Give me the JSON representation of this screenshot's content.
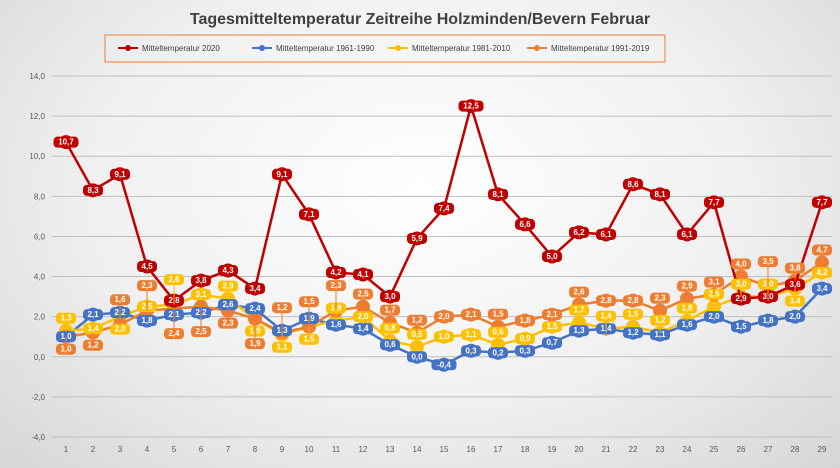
{
  "chart_data": {
    "type": "line",
    "title": "Tagesmitteltemperatur Zeitreihe Holzminden/Bevern Februar",
    "xlabel": "",
    "ylabel": "",
    "x": [
      1,
      2,
      3,
      4,
      5,
      6,
      7,
      8,
      9,
      10,
      11,
      12,
      13,
      14,
      15,
      16,
      17,
      18,
      19,
      20,
      21,
      22,
      23,
      24,
      25,
      26,
      27,
      28,
      29
    ],
    "ylim": [
      -4,
      14
    ],
    "yticks": [
      "-4,0",
      "-2,0",
      "0,0",
      "2,0",
      "4,0",
      "6,0",
      "8,0",
      "10,0",
      "12,0",
      "14,0"
    ],
    "grid": true,
    "legend_position": "top",
    "series": [
      {
        "name": "Mitteltemperatur 2020",
        "color": "#c00000",
        "values": [
          10.7,
          8.3,
          9.1,
          4.5,
          2.8,
          3.8,
          4.3,
          3.4,
          9.1,
          7.1,
          4.2,
          4.1,
          3.0,
          5.9,
          7.4,
          12.5,
          8.1,
          6.6,
          5.0,
          6.2,
          6.1,
          8.6,
          8.1,
          6.1,
          7.7,
          2.9,
          3.0,
          3.6,
          7.7
        ]
      },
      {
        "name": "Mitteltemperatur 1961-1990",
        "color": "#4472c4",
        "values": [
          1.0,
          2.1,
          2.2,
          1.8,
          2.1,
          2.2,
          2.6,
          2.4,
          1.3,
          1.9,
          1.6,
          1.4,
          0.6,
          0.0,
          -0.4,
          0.3,
          0.2,
          0.3,
          0.7,
          1.3,
          1.4,
          1.2,
          1.1,
          1.6,
          2.0,
          1.5,
          1.8,
          2.0,
          3.4
        ]
      },
      {
        "name": "Mitteltemperatur 1981-2010",
        "color": "#ffc000",
        "values": [
          1.3,
          1.4,
          2.0,
          2.5,
          2.6,
          3.1,
          2.9,
          1.9,
          1.1,
          1.5,
          1.8,
          2.0,
          0.8,
          0.5,
          1.0,
          1.1,
          0.6,
          0.9,
          1.5,
          1.7,
          1.4,
          1.5,
          1.2,
          1.8,
          2.5,
          3.0,
          3.0,
          3.4,
          4.2
        ]
      },
      {
        "name": "Mitteltemperatur 1991-2019",
        "color": "#ed7d31",
        "values": [
          1.0,
          1.2,
          1.6,
          2.3,
          2.4,
          2.5,
          2.3,
          1.9,
          1.2,
          1.5,
          2.3,
          2.5,
          1.7,
          1.2,
          2.0,
          2.1,
          1.5,
          1.8,
          2.1,
          2.6,
          2.8,
          2.8,
          2.3,
          2.9,
          3.1,
          4.0,
          3.5,
          3.8,
          4.7
        ]
      }
    ]
  }
}
